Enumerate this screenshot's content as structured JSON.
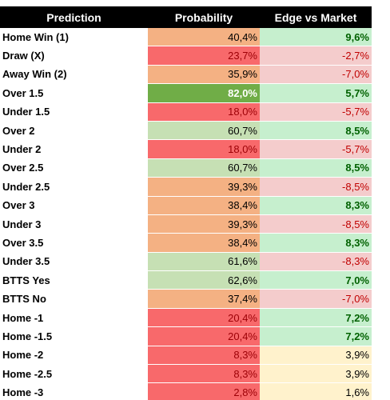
{
  "table": {
    "header": [
      "Prediction",
      "Probability",
      "Edge vs Market"
    ],
    "rows": [
      [
        "Home Win (1)",
        "40,4%",
        "9,6%"
      ],
      [
        "Draw (X)",
        "23,7%",
        "-2,7%"
      ],
      [
        "Away Win (2)",
        "35,9%",
        "-7,0%"
      ],
      [
        "Over 1.5",
        "82,0%",
        "5,7%"
      ],
      [
        "Under 1.5",
        "18,0%",
        "-5,7%"
      ],
      [
        "Over 2",
        "60,7%",
        "8,5%"
      ],
      [
        "Under 2",
        "18,0%",
        "-5,7%"
      ],
      [
        "Over 2.5",
        "60,7%",
        "8,5%"
      ],
      [
        "Under 2.5",
        "39,3%",
        "-8,5%"
      ],
      [
        "Over 3",
        "38,4%",
        "8,3%"
      ],
      [
        "Under 3",
        "39,3%",
        "-8,5%"
      ],
      [
        "Over 3.5",
        "38,4%",
        "8,3%"
      ],
      [
        "Under 3.5",
        "61,6%",
        "-8,3%"
      ],
      [
        "BTTS Yes",
        "62,6%",
        "7,0%"
      ],
      [
        "BTTS No",
        "37,4%",
        "-7,0%"
      ],
      [
        "Home -1",
        "20,4%",
        "7,2%"
      ],
      [
        "Home -1.5",
        "20,4%",
        "7,2%"
      ],
      [
        "Home -2",
        "8,3%",
        "3,9%"
      ],
      [
        "Home -2.5",
        "8,3%",
        "3,9%"
      ],
      [
        "Home -3",
        "2,8%",
        "1,6%"
      ]
    ],
    "cell_fills": [
      [
        "#ffffff",
        "#f4b183",
        "#c6efce"
      ],
      [
        "#ffffff",
        "#f8696b",
        "#f4cccc"
      ],
      [
        "#ffffff",
        "#f4b183",
        "#f4cccc"
      ],
      [
        "#ffffff",
        "#70ad47",
        "#c6efce"
      ],
      [
        "#ffffff",
        "#f8696b",
        "#f4cccc"
      ],
      [
        "#ffffff",
        "#c6e0b4",
        "#c6efce"
      ],
      [
        "#ffffff",
        "#f8696b",
        "#f4cccc"
      ],
      [
        "#ffffff",
        "#c6e0b4",
        "#c6efce"
      ],
      [
        "#ffffff",
        "#f4b183",
        "#f4cccc"
      ],
      [
        "#ffffff",
        "#f4b183",
        "#c6efce"
      ],
      [
        "#ffffff",
        "#f4b183",
        "#f4cccc"
      ],
      [
        "#ffffff",
        "#f4b183",
        "#c6efce"
      ],
      [
        "#ffffff",
        "#c6e0b4",
        "#f4cccc"
      ],
      [
        "#ffffff",
        "#c6e0b4",
        "#c6efce"
      ],
      [
        "#ffffff",
        "#f4b183",
        "#f4cccc"
      ],
      [
        "#ffffff",
        "#f8696b",
        "#c6efce"
      ],
      [
        "#ffffff",
        "#f8696b",
        "#c6efce"
      ],
      [
        "#ffffff",
        "#f8696b",
        "#fff2cc"
      ],
      [
        "#ffffff",
        "#f8696b",
        "#fff2cc"
      ],
      [
        "#ffffff",
        "#f8696b",
        "#fff2cc"
      ]
    ]
  }
}
